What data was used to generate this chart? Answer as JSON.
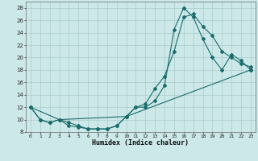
{
  "xlabel": "Humidex (Indice chaleur)",
  "background_color": "#cce8e8",
  "grid_color": "#aacccc",
  "line_color": "#1a6b6b",
  "xlim": [
    -0.5,
    23.5
  ],
  "ylim": [
    8,
    29
  ],
  "yticks": [
    8,
    10,
    12,
    14,
    16,
    18,
    20,
    22,
    24,
    26,
    28
  ],
  "xticks": [
    0,
    1,
    2,
    3,
    4,
    5,
    6,
    7,
    8,
    9,
    10,
    11,
    12,
    13,
    14,
    15,
    16,
    17,
    18,
    19,
    20,
    21,
    22,
    23
  ],
  "series1_x": [
    0,
    1,
    2,
    3,
    4,
    5,
    6,
    7,
    8,
    9,
    10,
    11,
    12,
    13,
    14,
    15,
    16,
    17,
    18,
    19,
    20,
    21,
    22,
    23
  ],
  "series1_y": [
    12,
    10,
    9.5,
    10,
    9,
    8.8,
    8.5,
    8.5,
    8.5,
    9,
    10.5,
    12,
    12.5,
    15,
    17,
    21,
    26.5,
    27,
    25,
    23.5,
    21,
    20,
    19,
    18.5
  ],
  "series2_x": [
    0,
    1,
    2,
    3,
    4,
    5,
    6,
    7,
    8,
    9,
    10,
    11,
    12,
    13,
    14,
    15,
    16,
    17,
    18,
    19,
    20,
    21,
    22,
    23
  ],
  "series2_y": [
    12,
    10,
    9.5,
    10,
    9.5,
    9,
    8.5,
    8.5,
    8.5,
    9,
    10.5,
    12,
    12,
    13,
    15.5,
    24.5,
    28,
    26.5,
    23,
    20,
    18,
    20.5,
    19.5,
    18
  ],
  "series3_x": [
    0,
    3,
    10,
    23
  ],
  "series3_y": [
    12,
    10,
    10.5,
    18
  ]
}
